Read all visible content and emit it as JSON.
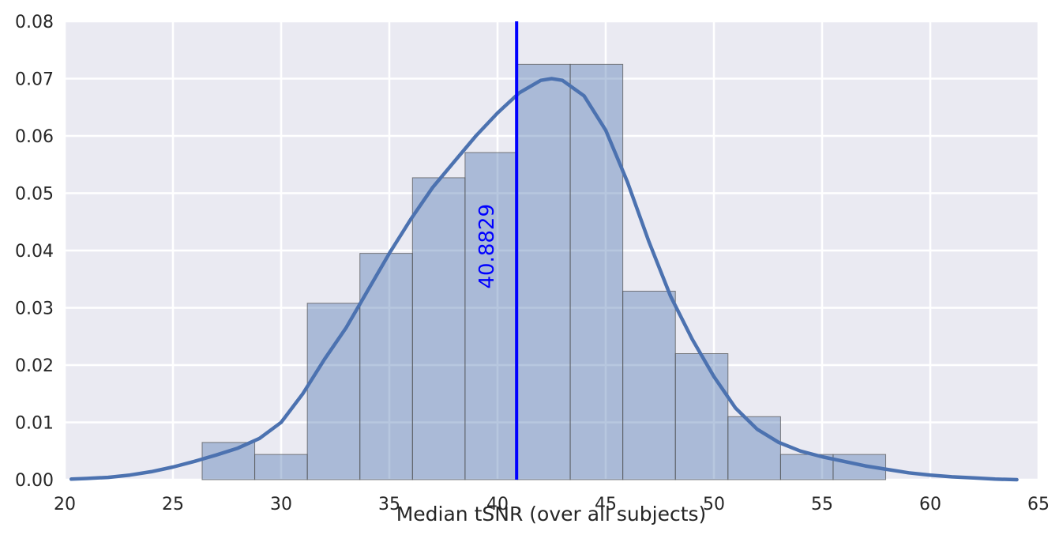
{
  "chart_data": {
    "type": "bar",
    "title": "",
    "xlabel": "Median tSNR (over all subjects)",
    "ylabel": "",
    "xlim": [
      20,
      65
    ],
    "ylim": [
      0,
      0.08
    ],
    "x_ticks": [
      "20",
      "25",
      "30",
      "35",
      "40",
      "45",
      "50",
      "55",
      "60",
      "65"
    ],
    "y_ticks": [
      "0.00",
      "0.01",
      "0.02",
      "0.03",
      "0.04",
      "0.05",
      "0.06",
      "0.07",
      "0.08"
    ],
    "grid": true,
    "histogram": {
      "bin_edges": [
        26.35,
        28.78,
        31.21,
        33.64,
        36.07,
        38.5,
        40.93,
        43.36,
        45.79,
        48.22,
        50.65,
        53.08,
        55.51,
        57.94
      ],
      "density": [
        0.0065,
        0.0044,
        0.0308,
        0.0395,
        0.0527,
        0.0571,
        0.0725,
        0.0725,
        0.0329,
        0.022,
        0.011,
        0.0044,
        0.0044
      ],
      "color": "#4c72b0"
    },
    "kde": {
      "color": "#4c72b0",
      "x": [
        20.3,
        21,
        22,
        23,
        24,
        25,
        26,
        27,
        28,
        29,
        30,
        31,
        32,
        33,
        34,
        35,
        36,
        37,
        38,
        39,
        40,
        41,
        42,
        42.5,
        43,
        44,
        45,
        46,
        47,
        48,
        49,
        50,
        51,
        52,
        53,
        54,
        55,
        56,
        57,
        58,
        59,
        60,
        61,
        62,
        63,
        64
      ],
      "y": [
        0.0001,
        0.0002,
        0.0004,
        0.0008,
        0.0014,
        0.0022,
        0.0032,
        0.0043,
        0.0055,
        0.0072,
        0.01,
        0.015,
        0.021,
        0.0265,
        0.033,
        0.0395,
        0.0455,
        0.051,
        0.0555,
        0.06,
        0.064,
        0.0675,
        0.0697,
        0.07,
        0.0697,
        0.067,
        0.061,
        0.052,
        0.0415,
        0.032,
        0.0245,
        0.018,
        0.0125,
        0.0088,
        0.0065,
        0.005,
        0.004,
        0.0032,
        0.0024,
        0.0018,
        0.0012,
        0.0008,
        0.0005,
        0.0003,
        0.0001,
        0.0
      ]
    },
    "median": {
      "value": 40.8829,
      "label": "40.8829",
      "color": "#0000ff"
    }
  }
}
